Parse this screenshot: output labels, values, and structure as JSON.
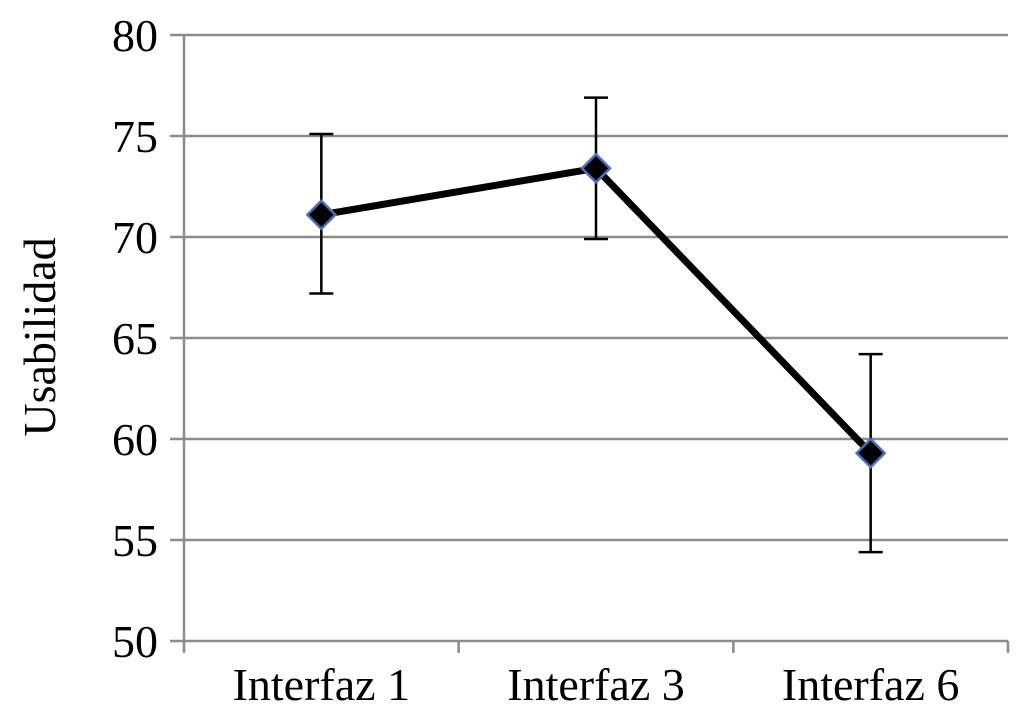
{
  "chart_data": {
    "type": "line",
    "title": "",
    "xlabel": "",
    "ylabel": "Usabilidad",
    "categories": [
      "Interfaz 1",
      "Interfaz 3",
      "Interfaz 6"
    ],
    "series": [
      {
        "values": [
          71.1,
          73.4,
          59.3
        ],
        "error_low": [
          67.2,
          69.9,
          54.4
        ],
        "error_high": [
          75.1,
          76.9,
          64.2
        ]
      }
    ],
    "ylim": [
      50,
      80
    ],
    "yticks": [
      50,
      55,
      60,
      65,
      70,
      75,
      80
    ],
    "ytick_labels": [
      "50",
      "55",
      "60",
      "65",
      "70",
      "75",
      "80"
    ],
    "grid": true,
    "legend": "none",
    "colors": {
      "line": "#000000",
      "marker_fill": "#000000",
      "marker_edge": "#4a6fb5",
      "gridline": "#8c8c8c",
      "error_bar": "#000000"
    }
  }
}
